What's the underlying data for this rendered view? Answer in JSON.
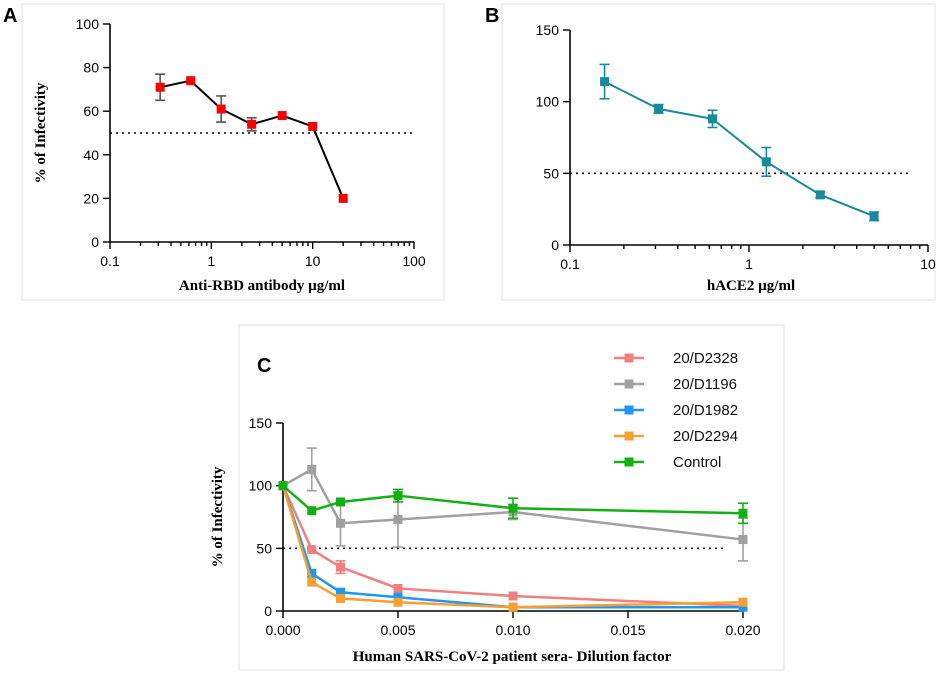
{
  "chart_data": [
    {
      "panel": "A",
      "type": "line",
      "xscale": "log",
      "xlabel": "Anti-RBD antibody µg/ml",
      "ylabel": "% of Infectivity",
      "xlim": [
        0.1,
        100
      ],
      "ylim": [
        0,
        100
      ],
      "xticks": [
        0.1,
        1,
        10,
        100
      ],
      "xtick_labels": [
        "0.1",
        "1",
        "10",
        "100"
      ],
      "yticks": [
        0,
        20,
        40,
        60,
        80,
        100
      ],
      "ytick_labels": [
        "0",
        "20",
        "40",
        "60",
        "80",
        "100"
      ],
      "reference_line": 50,
      "series": [
        {
          "name": "Anti-RBD antibody",
          "color": "#ff0000",
          "line_color": "#000000",
          "x": [
            0.3125,
            0.625,
            1.25,
            2.5,
            5,
            10,
            20
          ],
          "y": [
            71,
            74,
            61,
            54,
            58,
            53,
            20
          ],
          "err": [
            6,
            0,
            6,
            3,
            0,
            0,
            0
          ]
        }
      ]
    },
    {
      "panel": "B",
      "type": "line",
      "xscale": "log",
      "xlabel": "hACE2 µg/ml",
      "ylabel": "",
      "xlim": [
        0.1,
        10
      ],
      "ylim": [
        0,
        150
      ],
      "xticks": [
        0.1,
        1,
        10
      ],
      "xtick_labels": [
        "0.1",
        "1",
        "10"
      ],
      "yticks": [
        0,
        50,
        100,
        150
      ],
      "ytick_labels": [
        "0",
        "50",
        "100",
        "150"
      ],
      "reference_line": 50,
      "series": [
        {
          "name": "hACE2",
          "color": "#1a8a9a",
          "line_color": "#1a8a9a",
          "x": [
            0.156,
            0.3125,
            0.625,
            1.25,
            2.5,
            5
          ],
          "y": [
            114,
            95,
            88,
            58,
            35,
            20
          ],
          "err": [
            12,
            3,
            6,
            10,
            2,
            3
          ]
        }
      ]
    },
    {
      "panel": "C",
      "type": "line",
      "xscale": "linear",
      "xlabel": "Human SARS-CoV-2 patient sera- Dilution factor",
      "ylabel": "% of Infectivity",
      "xlim": [
        0,
        0.02
      ],
      "ylim": [
        0,
        150
      ],
      "xticks": [
        0,
        0.005,
        0.01,
        0.015,
        0.02
      ],
      "xtick_labels": [
        "0.000",
        "0.005",
        "0.010",
        "0.015",
        "0.020"
      ],
      "yticks": [
        0,
        50,
        100,
        150
      ],
      "ytick_labels": [
        "0",
        "50",
        "100",
        "150"
      ],
      "reference_line": 50,
      "x": [
        0,
        0.00125,
        0.0025,
        0.005,
        0.01,
        0.02
      ],
      "series": [
        {
          "name": "20/D2328",
          "color": "#f08080",
          "y": [
            100,
            49,
            35,
            18,
            12,
            4
          ],
          "err": [
            0,
            0,
            5,
            0,
            0,
            0
          ]
        },
        {
          "name": "20/D1196",
          "color": "#a0a0a0",
          "y": [
            100,
            113,
            70,
            73,
            79,
            57
          ],
          "err": [
            0,
            17,
            18,
            22,
            6,
            17
          ]
        },
        {
          "name": "20/D1982",
          "color": "#2196f3",
          "y": [
            100,
            30,
            15,
            11,
            3,
            3
          ],
          "err": [
            0,
            0,
            0,
            0,
            0,
            0
          ]
        },
        {
          "name": "20/D2294",
          "color": "#f5a030",
          "y": [
            100,
            23,
            10,
            7,
            3,
            7
          ],
          "err": [
            0,
            0,
            0,
            0,
            0,
            0
          ]
        },
        {
          "name": "Control",
          "color": "#12b012",
          "y": [
            100,
            80,
            87,
            92,
            82,
            78
          ],
          "err": [
            0,
            0,
            0,
            5,
            8,
            8
          ]
        }
      ]
    }
  ]
}
